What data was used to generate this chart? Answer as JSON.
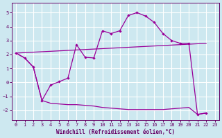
{
  "background_color": "#cde8f0",
  "grid_color": "#ffffff",
  "line_color": "#990099",
  "xlabel": "Windchill (Refroidissement éolien,°C)",
  "xlim": [
    -0.5,
    23.5
  ],
  "ylim": [
    -2.7,
    5.7
  ],
  "yticks": [
    -2,
    -1,
    0,
    1,
    2,
    3,
    4,
    5
  ],
  "xticks": [
    0,
    1,
    2,
    3,
    4,
    5,
    6,
    7,
    8,
    9,
    10,
    11,
    12,
    13,
    14,
    15,
    16,
    17,
    18,
    19,
    20,
    21,
    22,
    23
  ],
  "curve1_x": [
    0,
    1,
    2,
    3,
    4,
    5,
    6,
    7,
    8,
    9,
    10,
    11,
    12,
    13,
    14,
    15,
    16,
    17,
    18,
    19,
    20,
    21,
    22
  ],
  "curve1_y": [
    2.1,
    1.75,
    1.1,
    -1.3,
    -0.2,
    0.05,
    0.3,
    2.7,
    1.8,
    1.75,
    3.7,
    3.5,
    3.7,
    4.8,
    5.0,
    4.75,
    4.3,
    3.5,
    3.0,
    2.8,
    2.8,
    -2.3,
    -2.2
  ],
  "curve2_x": [
    0,
    1,
    2,
    3,
    4,
    5,
    6,
    7,
    8,
    9,
    10,
    11,
    12,
    13,
    14,
    15,
    16,
    17,
    18,
    19,
    20,
    21,
    22
  ],
  "curve2_y": [
    2.1,
    1.75,
    1.1,
    -1.3,
    -1.5,
    -1.55,
    -1.6,
    -1.6,
    -1.65,
    -1.7,
    -1.8,
    -1.85,
    -1.9,
    -1.95,
    -1.95,
    -1.95,
    -1.95,
    -1.95,
    -1.9,
    -1.85,
    -1.8,
    -2.3,
    -2.2
  ],
  "curve3_x": [
    0,
    22
  ],
  "curve3_y": [
    2.1,
    2.8
  ]
}
